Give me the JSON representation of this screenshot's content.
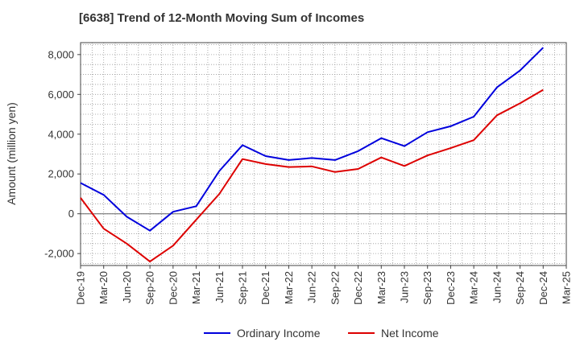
{
  "chart_data": {
    "type": "line",
    "title": "[6638]  Trend of 12-Month Moving Sum of Incomes",
    "xlabel": "",
    "ylabel": "Amount (million yen)",
    "ylim": [
      -2600,
      8600
    ],
    "yticks": [
      -2000,
      0,
      2000,
      4000,
      6000,
      8000
    ],
    "ytick_labels": [
      "-2,000",
      "0",
      "2,000",
      "4,000",
      "6,000",
      "8,000"
    ],
    "categories": [
      "Dec-19",
      "Mar-20",
      "Jun-20",
      "Sep-20",
      "Dec-20",
      "Mar-21",
      "Jun-21",
      "Sep-21",
      "Dec-21",
      "Mar-22",
      "Jun-22",
      "Sep-22",
      "Dec-22",
      "Mar-23",
      "Jun-23",
      "Sep-23",
      "Dec-23",
      "Mar-24",
      "Jun-24",
      "Sep-24",
      "Dec-24",
      "Mar-25"
    ],
    "grid": true,
    "legend_position": "bottom-center",
    "series": [
      {
        "name": "Ordinary Income",
        "color": "#0000dd",
        "values": [
          1550,
          950,
          -150,
          -850,
          100,
          380,
          2150,
          3450,
          2900,
          2700,
          2800,
          2700,
          3150,
          3800,
          3400,
          4100,
          4400,
          4880,
          6350,
          7200,
          8350,
          null
        ]
      },
      {
        "name": "Net Income",
        "color": "#dd0000",
        "values": [
          800,
          -750,
          -1500,
          -2400,
          -1600,
          -300,
          1000,
          2750,
          2500,
          2350,
          2380,
          2100,
          2250,
          2830,
          2400,
          2930,
          3300,
          3700,
          4950,
          5550,
          6230,
          null
        ]
      }
    ]
  }
}
